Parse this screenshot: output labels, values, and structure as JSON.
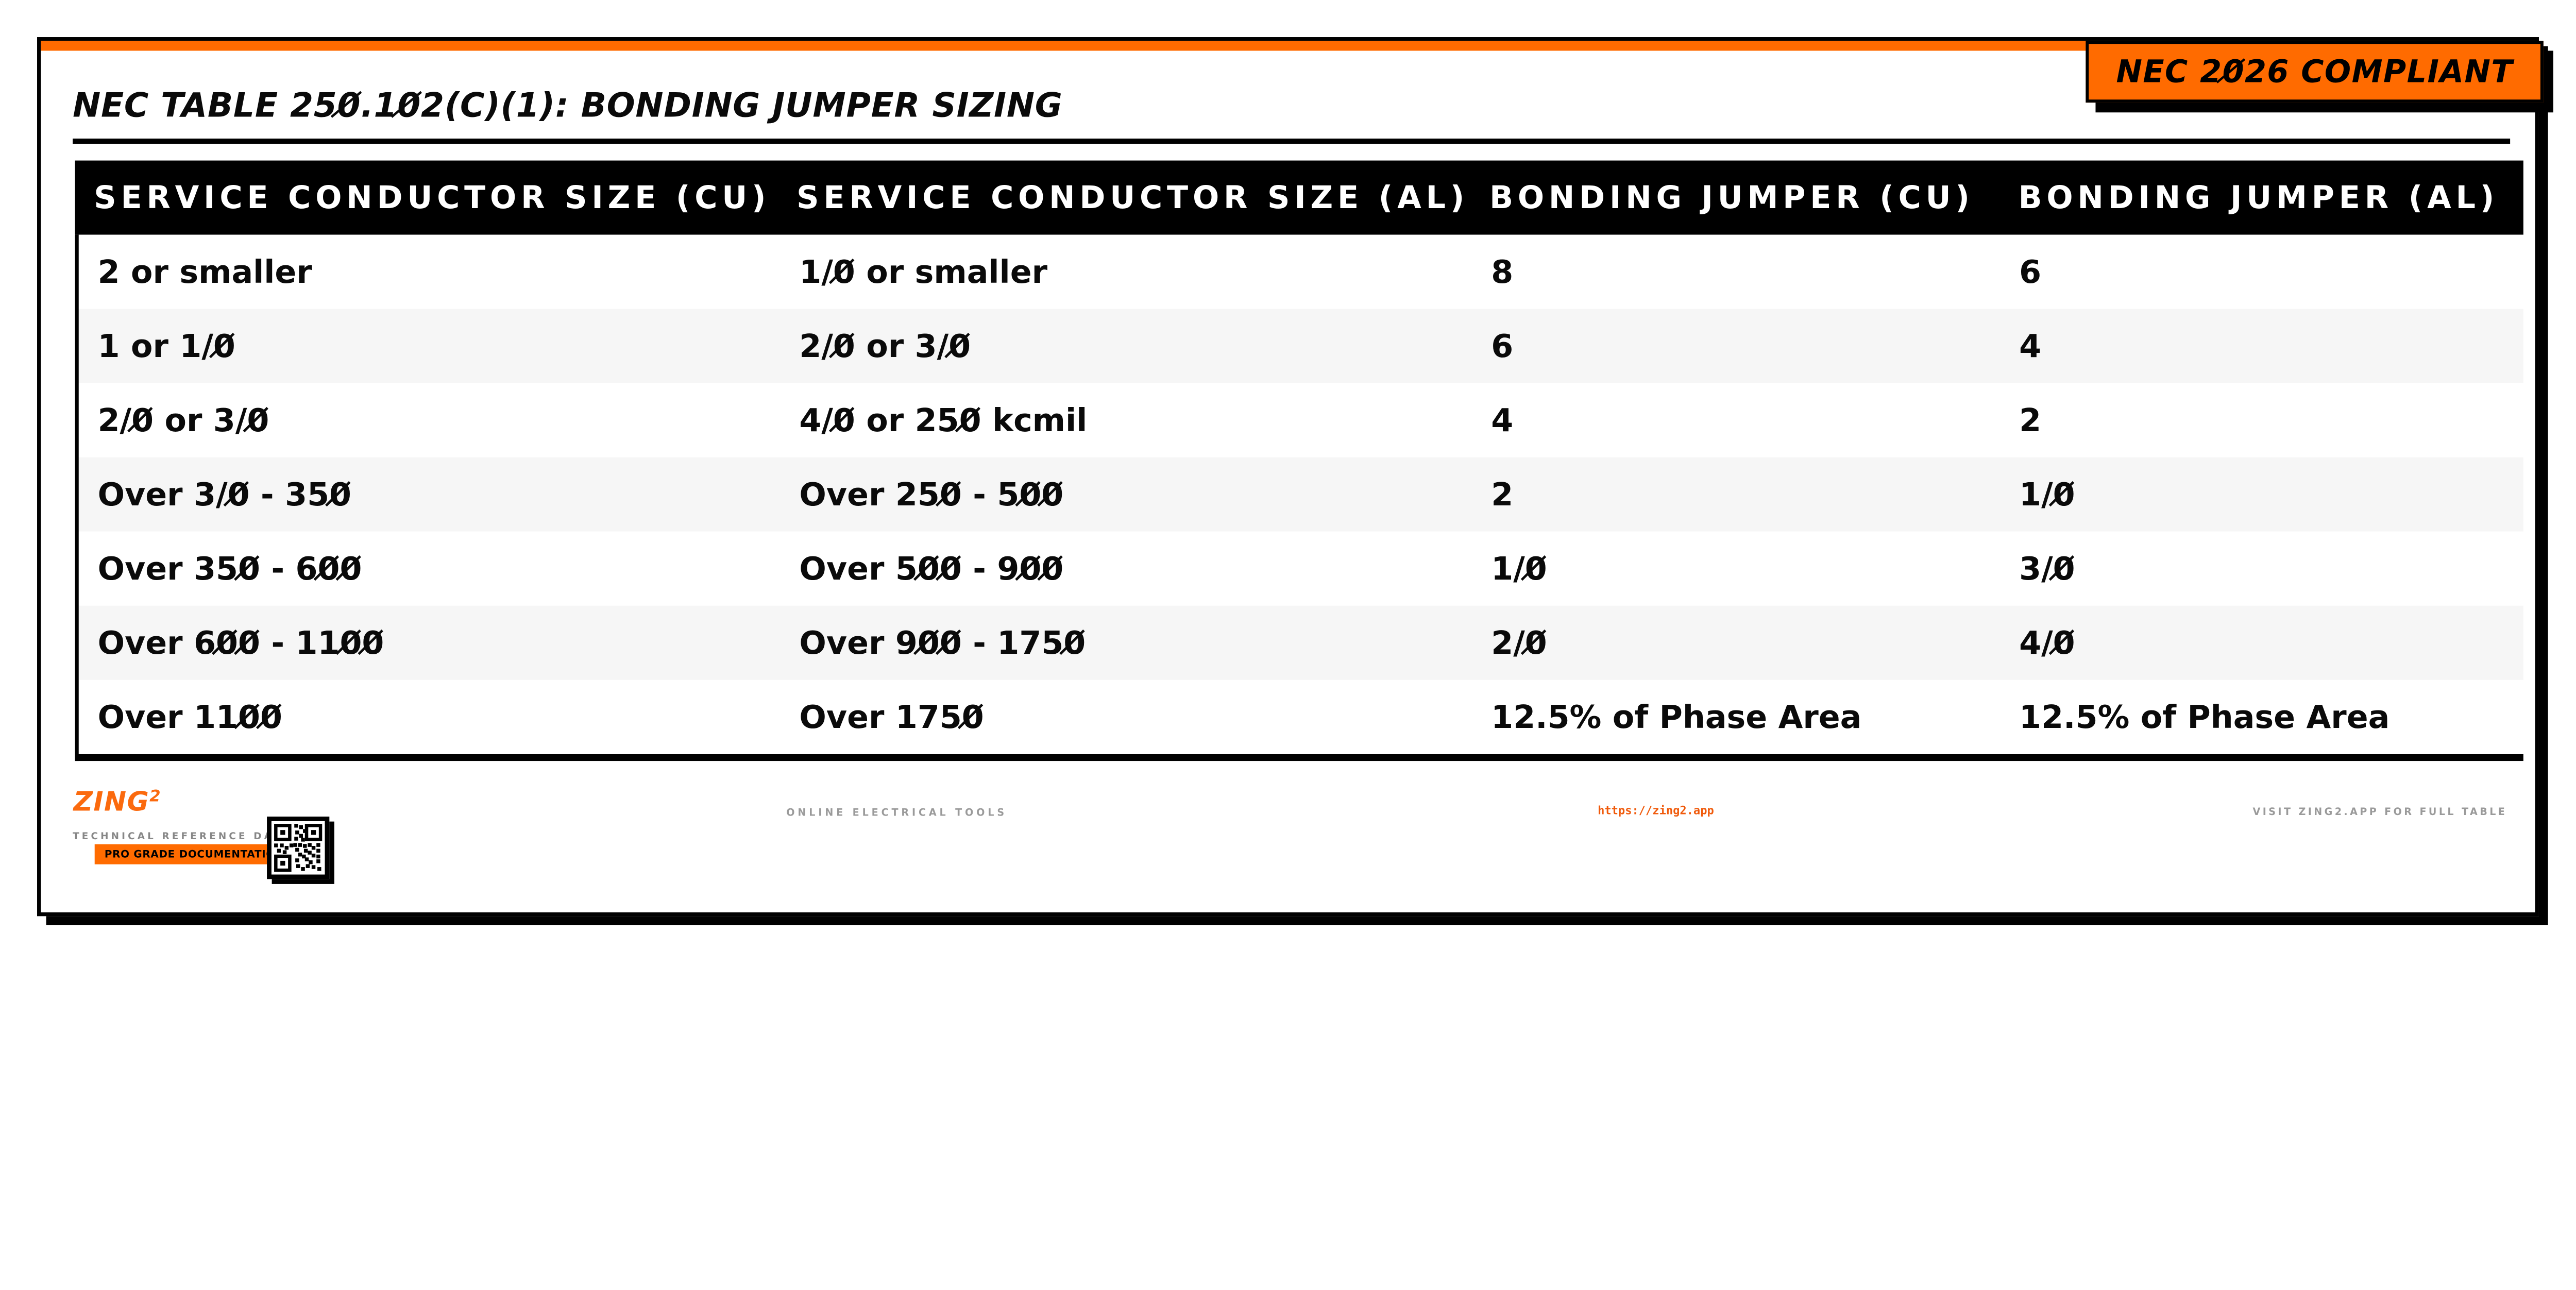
{
  "colors": {
    "accent": "#FF6B00",
    "logo_orange": "#FB6A0E",
    "url_orange": "#F05A0B",
    "row_alt": "#F6F6F6",
    "muted_gray": "#9A9A9A"
  },
  "header": {
    "title": "NEC TABLE 250.102(C)(1): BONDING JUMPER SIZING",
    "compliance_badge": "NEC 2026 COMPLIANT"
  },
  "table": {
    "headers": [
      "SERVICE CONDUCTOR SIZE (CU)",
      "SERVICE CONDUCTOR SIZE (AL)",
      "BONDING JUMPER (CU)",
      "BONDING JUMPER (AL)"
    ],
    "rows": [
      [
        "2 or smaller",
        "1/0 or smaller",
        "8",
        "6"
      ],
      [
        "1 or 1/0",
        "2/0 or 3/0",
        "6",
        "4"
      ],
      [
        "2/0 or 3/0",
        "4/0 or 250 kcmil",
        "4",
        "2"
      ],
      [
        "Over 3/0 - 350",
        "Over 250 - 500",
        "2",
        "1/0"
      ],
      [
        "Over 350 - 600",
        "Over 500 - 900",
        "1/0",
        "3/0"
      ],
      [
        "Over 600 - 1100",
        "Over 900 - 1750",
        "2/0",
        "4/0"
      ],
      [
        "Over 1100",
        "Over 1750",
        "12.5% of Phase Area",
        "12.5% of Phase Area"
      ]
    ]
  },
  "footer": {
    "brand": "ZING",
    "brand_sup": "2",
    "tagline": "TECHNICAL REFERENCE DATA",
    "pro_badge": "PRO GRADE DOCUMENTATION",
    "center_text": "ONLINE ELECTRICAL TOOLS",
    "url": "https://zing2.app",
    "right_text": "VISIT ZING2.APP FOR FULL TABLE",
    "qr_icon": "qr-code"
  }
}
